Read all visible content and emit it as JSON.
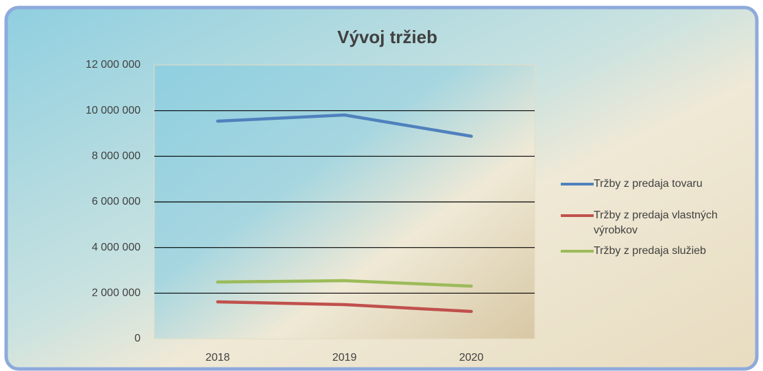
{
  "chart_data": {
    "type": "line",
    "title": "Vývoj tržieb",
    "categories": [
      "2018",
      "2019",
      "2020"
    ],
    "series": [
      {
        "name": "Tržby z predaja tovaru",
        "color": "#4f81bd",
        "values": [
          9540000,
          9810000,
          8880000
        ]
      },
      {
        "name": "Tržby z predaja vlastných výrobkov",
        "color": "#c0504d",
        "values": [
          1620000,
          1500000,
          1200000
        ]
      },
      {
        "name": "Tržby z predaja služieb",
        "color": "#9bbb59",
        "values": [
          2490000,
          2550000,
          2310000
        ]
      }
    ],
    "ylim": [
      0,
      12000000
    ],
    "yticks": [
      0,
      {
        "value": 2000000,
        "label": "2 000 000"
      },
      {
        "value": 4000000,
        "label": "4 000 000"
      },
      {
        "value": 6000000,
        "label": "6 000 000"
      },
      {
        "value": 8000000,
        "label": "8 000 000"
      },
      {
        "value": 10000000,
        "label": "10 000 000"
      },
      {
        "value": 12000000,
        "label": "12 000 000"
      }
    ],
    "grid": true,
    "legend": "right"
  }
}
